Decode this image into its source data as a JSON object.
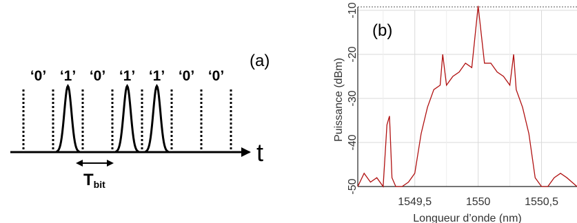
{
  "panel_a": {
    "label": "(a)",
    "bits": [
      "‘0’",
      "‘1’",
      "‘0’",
      "‘1’",
      "‘1’",
      "‘0’",
      "‘0’"
    ],
    "time_axis_label": "t",
    "period_label": "T",
    "period_subscript": "bit"
  },
  "panel_b": {
    "label": "(b)",
    "ylabel": "Puissance (dBm)",
    "xlabel": "Longueur d’onde (nm)",
    "trace_color": "#b01010"
  },
  "chart_data": {
    "type": "line",
    "title": "",
    "xlabel": "Longueur d’onde (nm)",
    "ylabel": "Puissance (dBm)",
    "xlim": [
      1549.05,
      1550.78
    ],
    "ylim": [
      -50,
      -10
    ],
    "x_ticks": [
      {
        "value": 1549.5,
        "label": "1549,5"
      },
      {
        "value": 1550.0,
        "label": "1550"
      },
      {
        "value": 1550.5,
        "label": "1550,5"
      }
    ],
    "y_ticks": [
      {
        "value": -10,
        "label": "-10"
      },
      {
        "value": -20,
        "label": "-20"
      },
      {
        "value": -30,
        "label": "-30"
      },
      {
        "value": -40,
        "label": "-40"
      },
      {
        "value": -50,
        "label": "-50"
      }
    ],
    "grid": true,
    "series": [
      {
        "x": [
          1549.05,
          1549.1,
          1549.15,
          1549.2,
          1549.25,
          1549.28,
          1549.3,
          1549.32,
          1549.35,
          1549.4,
          1549.45,
          1549.5,
          1549.55,
          1549.6,
          1549.65,
          1549.7,
          1549.72,
          1549.75,
          1549.8,
          1549.85,
          1549.9,
          1549.95,
          1550.0,
          1550.05,
          1550.1,
          1550.15,
          1550.2,
          1550.25,
          1550.28,
          1550.3,
          1550.35,
          1550.4,
          1550.45,
          1550.5,
          1550.55,
          1550.6,
          1550.65,
          1550.7,
          1550.78
        ],
        "y": [
          -50,
          -47,
          -49,
          -48,
          -50,
          -36,
          -34,
          -48,
          -50,
          -50,
          -49,
          -47,
          -38,
          -32,
          -28,
          -27,
          -20,
          -27,
          -25,
          -24,
          -22,
          -23,
          -9,
          -22,
          -22,
          -24,
          -25,
          -27,
          -20,
          -28,
          -32,
          -38,
          -48,
          -50,
          -50,
          -48,
          -47,
          -48,
          -50
        ]
      }
    ]
  }
}
